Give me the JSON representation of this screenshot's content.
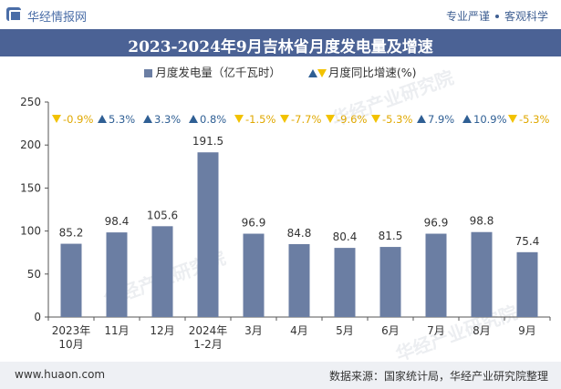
{
  "header": {
    "brand": "华经情报网",
    "tag_left": "专业严谨",
    "tag_right": "客观科学"
  },
  "title": "2023-2024年9月吉林省月度发电量及增速",
  "legend": {
    "bar_label": "月度发电量（亿千瓦时）",
    "growth_label": "月度同比增速(%)"
  },
  "footer": {
    "website": "www.huaon.com",
    "source": "数据来源：国家统计局，华经产业研究院整理"
  },
  "watermark": "华经产业研究院",
  "colors": {
    "bar": "#6b7ea3",
    "up": "#2f5f94",
    "down": "#f2c200",
    "title_bg": "#4b6295"
  },
  "chart_data": {
    "type": "bar",
    "categories": [
      "2023年\n10月",
      "11月",
      "12月",
      "2024年\n1-2月",
      "3月",
      "4月",
      "5月",
      "6月",
      "7月",
      "8月",
      "9月"
    ],
    "series": [
      {
        "name": "月度发电量（亿千瓦时）",
        "values": [
          85.2,
          98.4,
          105.6,
          191.5,
          96.9,
          84.8,
          80.4,
          81.5,
          96.9,
          98.8,
          75.4
        ]
      },
      {
        "name": "月度同比增速(%)",
        "values": [
          -0.9,
          5.3,
          3.3,
          0.8,
          -1.5,
          -7.7,
          -9.6,
          -5.3,
          7.9,
          10.9,
          -5.3
        ]
      }
    ],
    "growth_labels": [
      "-0.9%",
      "5.3%",
      "3.3%",
      "0.8%",
      "-1.5%",
      "-7.7%",
      "-9.6%",
      "-5.3%",
      "7.9%",
      "10.9%",
      "-5.3%"
    ],
    "ylim": [
      0,
      250
    ],
    "yticks": [
      0,
      50,
      100,
      150,
      200,
      250
    ],
    "grid": false,
    "legend_position": "top"
  }
}
